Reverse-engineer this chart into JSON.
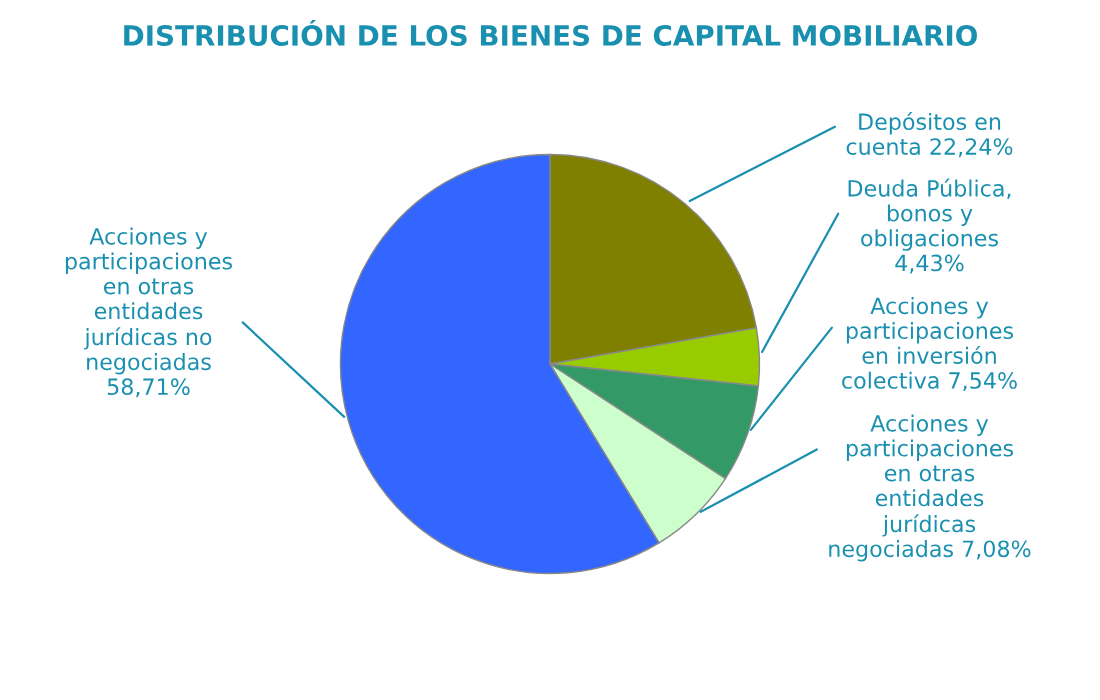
{
  "chart_data": {
    "type": "pie",
    "title": "DISTRIBUCIÓN DE LOS BIENES DE CAPITAL MOBILIARIO",
    "categories": [
      "Depósitos en cuenta",
      "Deuda Pública, bonos y obligaciones",
      "Acciones y participaciones en inversión colectiva",
      "Acciones y participaciones en otras entidades jurídicas negociadas",
      "Acciones y participaciones en otras entidades jurídicas no negociadas"
    ],
    "values": [
      22.24,
      4.43,
      7.54,
      7.08,
      58.71
    ],
    "value_labels": [
      "22,24%",
      "4,43%",
      "7,54%",
      "7,08%",
      "58,71%"
    ],
    "colors": [
      "#808000",
      "#99cc00",
      "#339966",
      "#ccffcc",
      "#3366ff"
    ],
    "legend": false
  }
}
